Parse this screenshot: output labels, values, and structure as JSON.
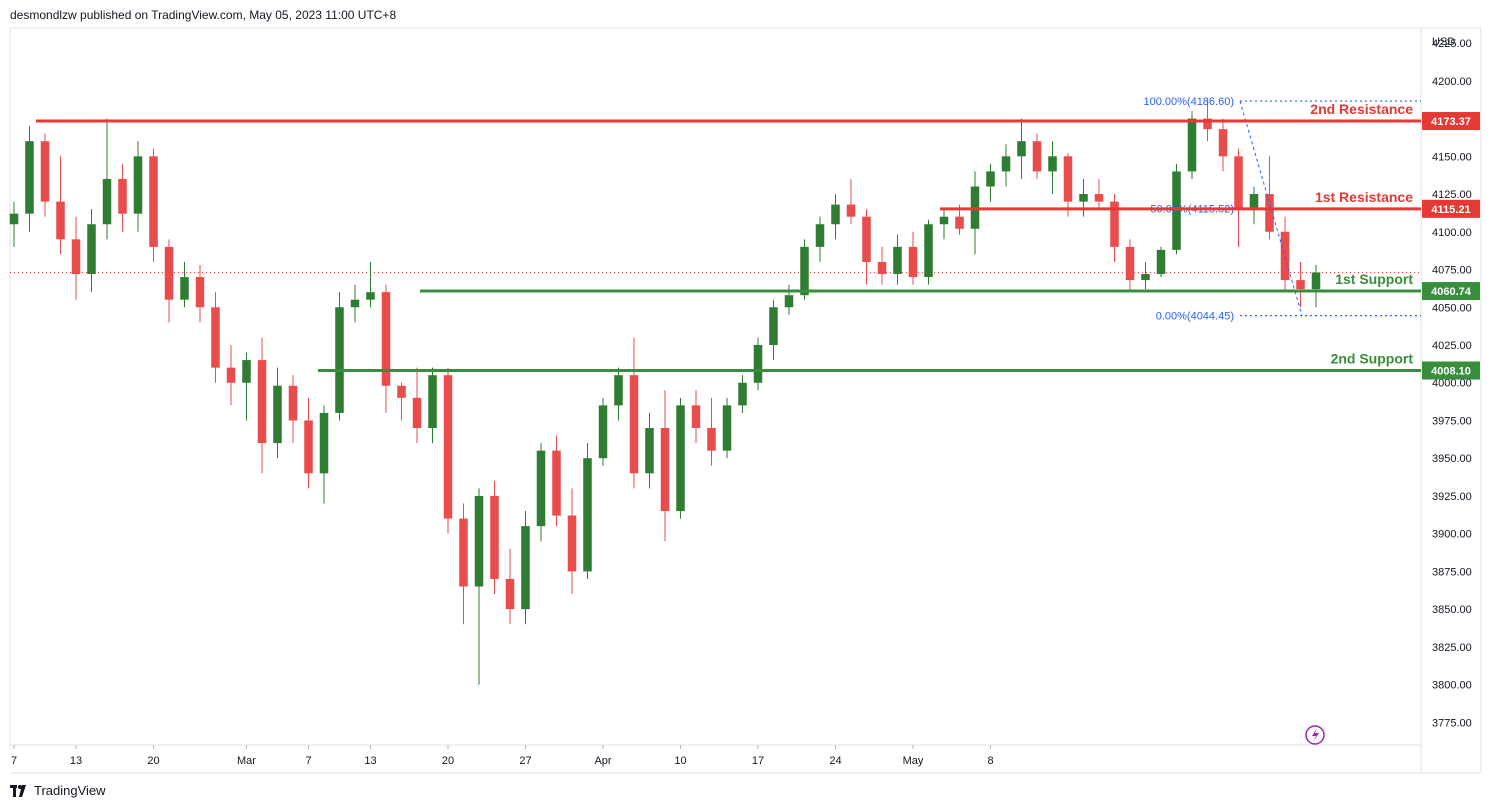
{
  "header": {
    "publisher": "desmondlzw published on TradingView.com, May 05, 2023 11:00 UTC+8"
  },
  "footer": {
    "brand": "TradingView"
  },
  "colors": {
    "up": "#2e7d32",
    "down": "#e84c4c",
    "resistance": "#e53935",
    "support": "#388e3c",
    "fib": "#2962ff",
    "grid_border": "#e0e3eb",
    "axis_text": "#131722",
    "dotted_last": "#e53935",
    "lightning": "#9c27b0"
  },
  "chart_data": {
    "type": "candlestick",
    "instrument_currency": "USD",
    "ylim": [
      3760,
      4235
    ],
    "y_ticks": [
      "3775.00",
      "3800.00",
      "3825.00",
      "3850.00",
      "3875.00",
      "3900.00",
      "3925.00",
      "3950.00",
      "3975.00",
      "4000.00",
      "4025.00",
      "4050.00",
      "4075.00",
      "4100.00",
      "4125.00",
      "4150.00",
      "4175.00",
      "4200.00",
      "4225.00"
    ],
    "x_ticks": [
      {
        "label": "7",
        "idx": 0
      },
      {
        "label": "13",
        "idx": 4
      },
      {
        "label": "20",
        "idx": 9
      },
      {
        "label": "Mar",
        "idx": 15
      },
      {
        "label": "7",
        "idx": 19
      },
      {
        "label": "13",
        "idx": 23
      },
      {
        "label": "20",
        "idx": 28
      },
      {
        "label": "27",
        "idx": 33
      },
      {
        "label": "Apr",
        "idx": 38
      },
      {
        "label": "10",
        "idx": 43
      },
      {
        "label": "17",
        "idx": 48
      },
      {
        "label": "24",
        "idx": 53
      },
      {
        "label": "May",
        "idx": 58
      },
      {
        "label": "8",
        "idx": 63
      }
    ],
    "levels": [
      {
        "name": "2nd Resistance",
        "value": 4173.37,
        "label": "4173.37",
        "kind": "resistance"
      },
      {
        "name": "1st Resistance",
        "value": 4115.21,
        "label": "4115.21",
        "kind": "resistance"
      },
      {
        "name": "1st Support",
        "value": 4060.74,
        "label": "4060.74",
        "kind": "support"
      },
      {
        "name": "2nd Support",
        "value": 4008.1,
        "label": "4008.10",
        "kind": "support"
      }
    ],
    "fib": [
      {
        "label": "100.00%(4186.60)",
        "value": 4186.6
      },
      {
        "label": "50.00%(4115.52)",
        "value": 4115.52
      },
      {
        "label": "0.00%(4044.45)",
        "value": 4044.45
      }
    ],
    "last_price": 4073,
    "candles": [
      [
        4105,
        4120,
        4090,
        4112
      ],
      [
        4112,
        4170,
        4100,
        4160
      ],
      [
        4160,
        4165,
        4110,
        4120
      ],
      [
        4120,
        4150,
        4085,
        4095
      ],
      [
        4095,
        4110,
        4055,
        4072
      ],
      [
        4072,
        4115,
        4060,
        4105
      ],
      [
        4105,
        4175,
        4095,
        4135
      ],
      [
        4135,
        4145,
        4100,
        4112
      ],
      [
        4112,
        4160,
        4100,
        4150
      ],
      [
        4150,
        4155,
        4080,
        4090
      ],
      [
        4090,
        4095,
        4040,
        4055
      ],
      [
        4055,
        4080,
        4050,
        4070
      ],
      [
        4070,
        4078,
        4040,
        4050
      ],
      [
        4050,
        4060,
        4000,
        4010
      ],
      [
        4010,
        4025,
        3985,
        4000
      ],
      [
        4000,
        4020,
        3975,
        4015
      ],
      [
        4015,
        4030,
        3940,
        3960
      ],
      [
        3960,
        4010,
        3950,
        3998
      ],
      [
        3998,
        4005,
        3960,
        3975
      ],
      [
        3975,
        3990,
        3930,
        3940
      ],
      [
        3940,
        3985,
        3920,
        3980
      ],
      [
        3980,
        4060,
        3975,
        4050
      ],
      [
        4050,
        4065,
        4040,
        4055
      ],
      [
        4055,
        4080,
        4050,
        4060
      ],
      [
        4060,
        4065,
        3980,
        3998
      ],
      [
        3998,
        4000,
        3975,
        3990
      ],
      [
        3990,
        4010,
        3960,
        3970
      ],
      [
        3970,
        4010,
        3960,
        4005
      ],
      [
        4005,
        4010,
        3900,
        3910
      ],
      [
        3910,
        3920,
        3840,
        3865
      ],
      [
        3865,
        3930,
        3800,
        3925
      ],
      [
        3925,
        3935,
        3860,
        3870
      ],
      [
        3870,
        3890,
        3840,
        3850
      ],
      [
        3850,
        3915,
        3840,
        3905
      ],
      [
        3905,
        3960,
        3895,
        3955
      ],
      [
        3955,
        3965,
        3905,
        3912
      ],
      [
        3912,
        3930,
        3860,
        3875
      ],
      [
        3875,
        3960,
        3870,
        3950
      ],
      [
        3950,
        3990,
        3945,
        3985
      ],
      [
        3985,
        4010,
        3975,
        4005
      ],
      [
        4005,
        4030,
        3930,
        3940
      ],
      [
        3940,
        3980,
        3930,
        3970
      ],
      [
        3970,
        3995,
        3895,
        3915
      ],
      [
        3915,
        3990,
        3910,
        3985
      ],
      [
        3985,
        3995,
        3960,
        3970
      ],
      [
        3970,
        3990,
        3945,
        3955
      ],
      [
        3955,
        3990,
        3950,
        3985
      ],
      [
        3985,
        4005,
        3980,
        4000
      ],
      [
        4000,
        4030,
        3995,
        4025
      ],
      [
        4025,
        4055,
        4015,
        4050
      ],
      [
        4050,
        4065,
        4045,
        4058
      ],
      [
        4058,
        4095,
        4055,
        4090
      ],
      [
        4090,
        4110,
        4080,
        4105
      ],
      [
        4105,
        4125,
        4095,
        4118
      ],
      [
        4118,
        4135,
        4105,
        4110
      ],
      [
        4110,
        4115,
        4065,
        4080
      ],
      [
        4080,
        4090,
        4065,
        4072
      ],
      [
        4072,
        4098,
        4065,
        4090
      ],
      [
        4090,
        4100,
        4065,
        4070
      ],
      [
        4070,
        4108,
        4065,
        4105
      ],
      [
        4105,
        4115,
        4095,
        4110
      ],
      [
        4110,
        4118,
        4098,
        4102
      ],
      [
        4102,
        4140,
        4085,
        4130
      ],
      [
        4130,
        4145,
        4120,
        4140
      ],
      [
        4140,
        4158,
        4130,
        4150
      ],
      [
        4150,
        4175,
        4135,
        4160
      ],
      [
        4160,
        4165,
        4135,
        4140
      ],
      [
        4140,
        4160,
        4125,
        4150
      ],
      [
        4150,
        4152,
        4110,
        4120
      ],
      [
        4120,
        4135,
        4110,
        4125
      ],
      [
        4125,
        4135,
        4115,
        4120
      ],
      [
        4120,
        4125,
        4080,
        4090
      ],
      [
        4090,
        4095,
        4060,
        4068
      ],
      [
        4068,
        4080,
        4062,
        4072
      ],
      [
        4072,
        4090,
        4070,
        4088
      ],
      [
        4088,
        4145,
        4085,
        4140
      ],
      [
        4140,
        4180,
        4135,
        4175
      ],
      [
        4175,
        4187,
        4160,
        4168
      ],
      [
        4168,
        4175,
        4140,
        4150
      ],
      [
        4150,
        4155,
        4090,
        4115
      ],
      [
        4115,
        4130,
        4105,
        4125
      ],
      [
        4125,
        4150,
        4095,
        4100
      ],
      [
        4100,
        4110,
        4060,
        4068
      ],
      [
        4068,
        4080,
        4050,
        4062
      ],
      [
        4062,
        4078,
        4050,
        4073
      ]
    ]
  }
}
